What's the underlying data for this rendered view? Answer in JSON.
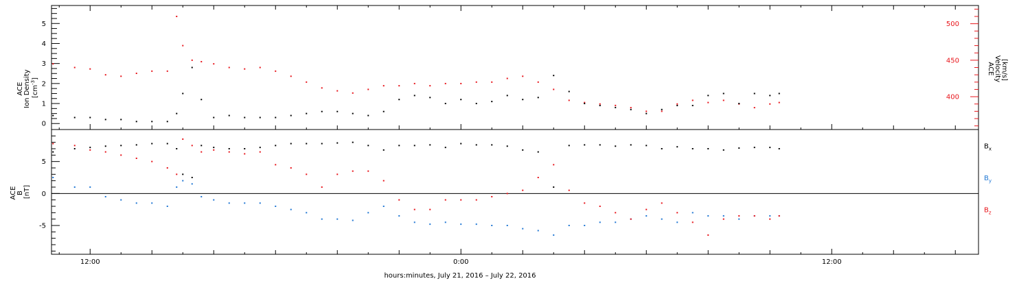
{
  "xaxis": {
    "label": "hours:minutes, July 21, 2016 – July 22, 2016",
    "ticks": [
      {
        "label": "12:00",
        "hours": 12
      },
      {
        "label": "0:00",
        "hours": 24
      },
      {
        "label": "12:00",
        "hours": 36
      }
    ]
  },
  "top_panel": {
    "left_label": [
      "ACE",
      "Ion Density",
      "[cm",
      "-3",
      "]"
    ],
    "right_label": [
      "ACE",
      "Velocity",
      "[km/s]"
    ],
    "density_ticks": [
      "0",
      "1",
      "2",
      "3",
      "4",
      "5"
    ],
    "velocity_ticks": [
      "400",
      "450",
      "500"
    ]
  },
  "bottom_panel": {
    "left_label": [
      "ACE",
      "B",
      "[nT]"
    ],
    "ticks": [
      "-5",
      "0",
      "5"
    ],
    "legend": [
      {
        "sym": "B",
        "sub": "x",
        "color": "#000000"
      },
      {
        "sym": "B",
        "sub": "y",
        "color": "#1f77d4"
      },
      {
        "sym": "B",
        "sub": "z",
        "color": "#e8141a"
      }
    ]
  },
  "chart_data": [
    {
      "type": "scatter",
      "panel": "top",
      "title": "",
      "xlabel": "hours:minutes, July 21, 2016 – July 22, 2016",
      "xunit": "hours since July 21, 2016 00:00",
      "xlim": [
        10.75,
        40.75
      ],
      "grid": false,
      "series": [
        {
          "name": "Ion Density",
          "axis": "left",
          "ylabel": "Ion Density [cm-3]",
          "ylim": [
            -0.3,
            5.9
          ],
          "color": "#000000",
          "x": [
            10.8,
            11.5,
            12.0,
            12.5,
            13.0,
            13.5,
            14.0,
            14.5,
            14.8,
            15.0,
            15.3,
            15.6,
            16.0,
            16.5,
            17.0,
            17.5,
            18.0,
            18.5,
            19.0,
            19.5,
            20.0,
            20.5,
            21.0,
            21.5,
            22.0,
            22.5,
            23.0,
            23.5,
            24.0,
            24.5,
            25.0,
            25.5,
            26.0,
            26.5,
            27.0,
            27.5,
            28.0,
            28.5,
            29.0,
            29.5,
            30.0,
            30.5,
            31.0,
            31.5,
            32.0,
            32.5,
            33.0,
            33.5,
            34.0,
            34.3
          ],
          "y": [
            0.4,
            0.3,
            0.3,
            0.2,
            0.2,
            0.1,
            0.1,
            0.1,
            0.5,
            1.5,
            2.8,
            1.2,
            0.3,
            0.4,
            0.3,
            0.3,
            0.3,
            0.4,
            0.5,
            0.6,
            0.6,
            0.5,
            0.4,
            0.6,
            1.2,
            1.4,
            1.3,
            1.0,
            1.2,
            1.0,
            1.1,
            1.4,
            1.2,
            1.3,
            2.4,
            1.6,
            1.0,
            0.9,
            0.8,
            0.7,
            0.5,
            0.7,
            0.9,
            0.9,
            1.4,
            1.5,
            1.0,
            1.5,
            1.4,
            1.5
          ]
        },
        {
          "name": "Velocity",
          "axis": "right",
          "ylabel": "Velocity [km/s]",
          "ylim": [
            355,
            525
          ],
          "color": "#e8141a",
          "x": [
            10.8,
            11.5,
            12.0,
            12.5,
            13.0,
            13.5,
            14.0,
            14.5,
            14.8,
            15.0,
            15.3,
            15.6,
            16.0,
            16.5,
            17.0,
            17.5,
            18.0,
            18.5,
            19.0,
            19.5,
            20.0,
            20.5,
            21.0,
            21.5,
            22.0,
            22.5,
            23.0,
            23.5,
            24.0,
            24.5,
            25.0,
            25.5,
            26.0,
            26.5,
            27.0,
            27.5,
            28.0,
            28.5,
            29.0,
            29.5,
            30.0,
            30.5,
            31.0,
            31.5,
            32.0,
            32.5,
            33.0,
            33.5,
            34.0,
            34.3
          ],
          "y": [
            445,
            440,
            438,
            430,
            428,
            432,
            435,
            435,
            510,
            470,
            450,
            448,
            445,
            440,
            438,
            440,
            435,
            428,
            420,
            412,
            408,
            405,
            410,
            415,
            415,
            418,
            415,
            418,
            418,
            420,
            420,
            425,
            428,
            420,
            410,
            395,
            392,
            390,
            388,
            385,
            380,
            380,
            390,
            395,
            392,
            395,
            390,
            385,
            390,
            392
          ]
        }
      ]
    },
    {
      "type": "scatter",
      "panel": "bottom",
      "title": "",
      "xlabel": "hours:minutes, July 21, 2016 – July 22, 2016",
      "xunit": "hours since July 21, 2016 00:00",
      "xlim": [
        10.75,
        40.75
      ],
      "ylabel": "B [nT]",
      "ylim": [
        -9.5,
        10
      ],
      "grid": false,
      "zero_line": true,
      "series": [
        {
          "name": "Bx",
          "color": "#000000",
          "x": [
            10.8,
            11.5,
            12.0,
            12.5,
            13.0,
            13.5,
            14.0,
            14.5,
            14.8,
            15.0,
            15.3,
            15.6,
            16.0,
            16.5,
            17.0,
            17.5,
            18.0,
            18.5,
            19.0,
            19.5,
            20.0,
            20.5,
            21.0,
            21.5,
            22.0,
            22.5,
            23.0,
            23.5,
            24.0,
            24.5,
            25.0,
            25.5,
            26.0,
            26.5,
            27.0,
            27.5,
            28.0,
            28.5,
            29.0,
            29.5,
            30.0,
            30.5,
            31.0,
            31.5,
            32.0,
            32.5,
            33.0,
            33.5,
            34.0,
            34.3
          ],
          "y": [
            6.5,
            7.0,
            7.2,
            7.4,
            7.5,
            7.6,
            7.8,
            7.8,
            7.0,
            3.0,
            2.5,
            7.5,
            7.2,
            7.0,
            7.0,
            7.2,
            7.5,
            7.8,
            7.8,
            7.8,
            7.9,
            8.0,
            7.5,
            6.8,
            7.5,
            7.5,
            7.6,
            7.2,
            7.8,
            7.6,
            7.6,
            7.4,
            6.8,
            6.5,
            1.0,
            7.5,
            7.6,
            7.6,
            7.4,
            7.6,
            7.5,
            7.0,
            7.3,
            7.0,
            7.0,
            6.8,
            7.1,
            7.2,
            7.2,
            7.0
          ]
        },
        {
          "name": "By",
          "color": "#1f77d4",
          "x": [
            10.8,
            11.5,
            12.0,
            12.5,
            13.0,
            13.5,
            14.0,
            14.5,
            14.8,
            15.0,
            15.3,
            15.6,
            16.0,
            16.5,
            17.0,
            17.5,
            18.0,
            18.5,
            19.0,
            19.5,
            20.0,
            20.5,
            21.0,
            21.5,
            22.0,
            22.5,
            23.0,
            23.5,
            24.0,
            24.5,
            25.0,
            25.5,
            26.0,
            26.5,
            27.0,
            27.5,
            28.0,
            28.5,
            29.0,
            29.5,
            30.0,
            30.5,
            31.0,
            31.5,
            32.0,
            32.5,
            33.0,
            33.5,
            34.0,
            34.3
          ],
          "y": [
            2.5,
            1.0,
            1.0,
            -0.5,
            -1.0,
            -1.5,
            -1.5,
            -2.0,
            1.0,
            2.0,
            1.5,
            -0.5,
            -1.0,
            -1.5,
            -1.5,
            -1.5,
            -2.0,
            -2.5,
            -3.0,
            -4.0,
            -4.0,
            -4.2,
            -3.0,
            -2.0,
            -3.5,
            -4.5,
            -4.8,
            -4.5,
            -4.8,
            -4.8,
            -5.0,
            -5.0,
            -5.5,
            -5.8,
            -6.5,
            -5.0,
            -5.0,
            -4.5,
            -4.5,
            -4.0,
            -3.5,
            -4.0,
            -4.5,
            -3.0,
            -3.5,
            -3.5,
            -4.0,
            -3.5,
            -3.5,
            -3.5
          ]
        },
        {
          "name": "Bz",
          "color": "#e8141a",
          "x": [
            10.8,
            11.5,
            12.0,
            12.5,
            13.0,
            13.5,
            14.0,
            14.5,
            14.8,
            15.0,
            15.3,
            15.6,
            16.0,
            16.5,
            17.0,
            17.5,
            18.0,
            18.5,
            19.0,
            19.5,
            20.0,
            20.5,
            21.0,
            21.5,
            22.0,
            22.5,
            23.0,
            23.5,
            24.0,
            24.5,
            25.0,
            25.5,
            26.0,
            26.5,
            27.0,
            27.5,
            28.0,
            28.5,
            29.0,
            29.5,
            30.0,
            30.5,
            31.0,
            31.5,
            32.0,
            32.5,
            33.0,
            33.5,
            34.0,
            34.3
          ],
          "y": [
            7.8,
            7.5,
            6.8,
            6.5,
            6.0,
            5.5,
            5.0,
            4.0,
            3.0,
            8.5,
            7.5,
            6.5,
            6.8,
            6.5,
            6.2,
            6.5,
            4.5,
            4.0,
            3.0,
            1.0,
            3.0,
            3.5,
            3.5,
            2.0,
            -1.0,
            -2.5,
            -2.5,
            -1.0,
            -1.0,
            -1.0,
            -0.5,
            0.0,
            0.5,
            2.5,
            4.5,
            0.5,
            -1.5,
            -2.0,
            -3.0,
            -4.0,
            -2.5,
            -1.5,
            -3.0,
            -4.5,
            -6.5,
            -4.0,
            -3.5,
            -3.5,
            -4.0,
            -3.5
          ]
        }
      ]
    }
  ]
}
